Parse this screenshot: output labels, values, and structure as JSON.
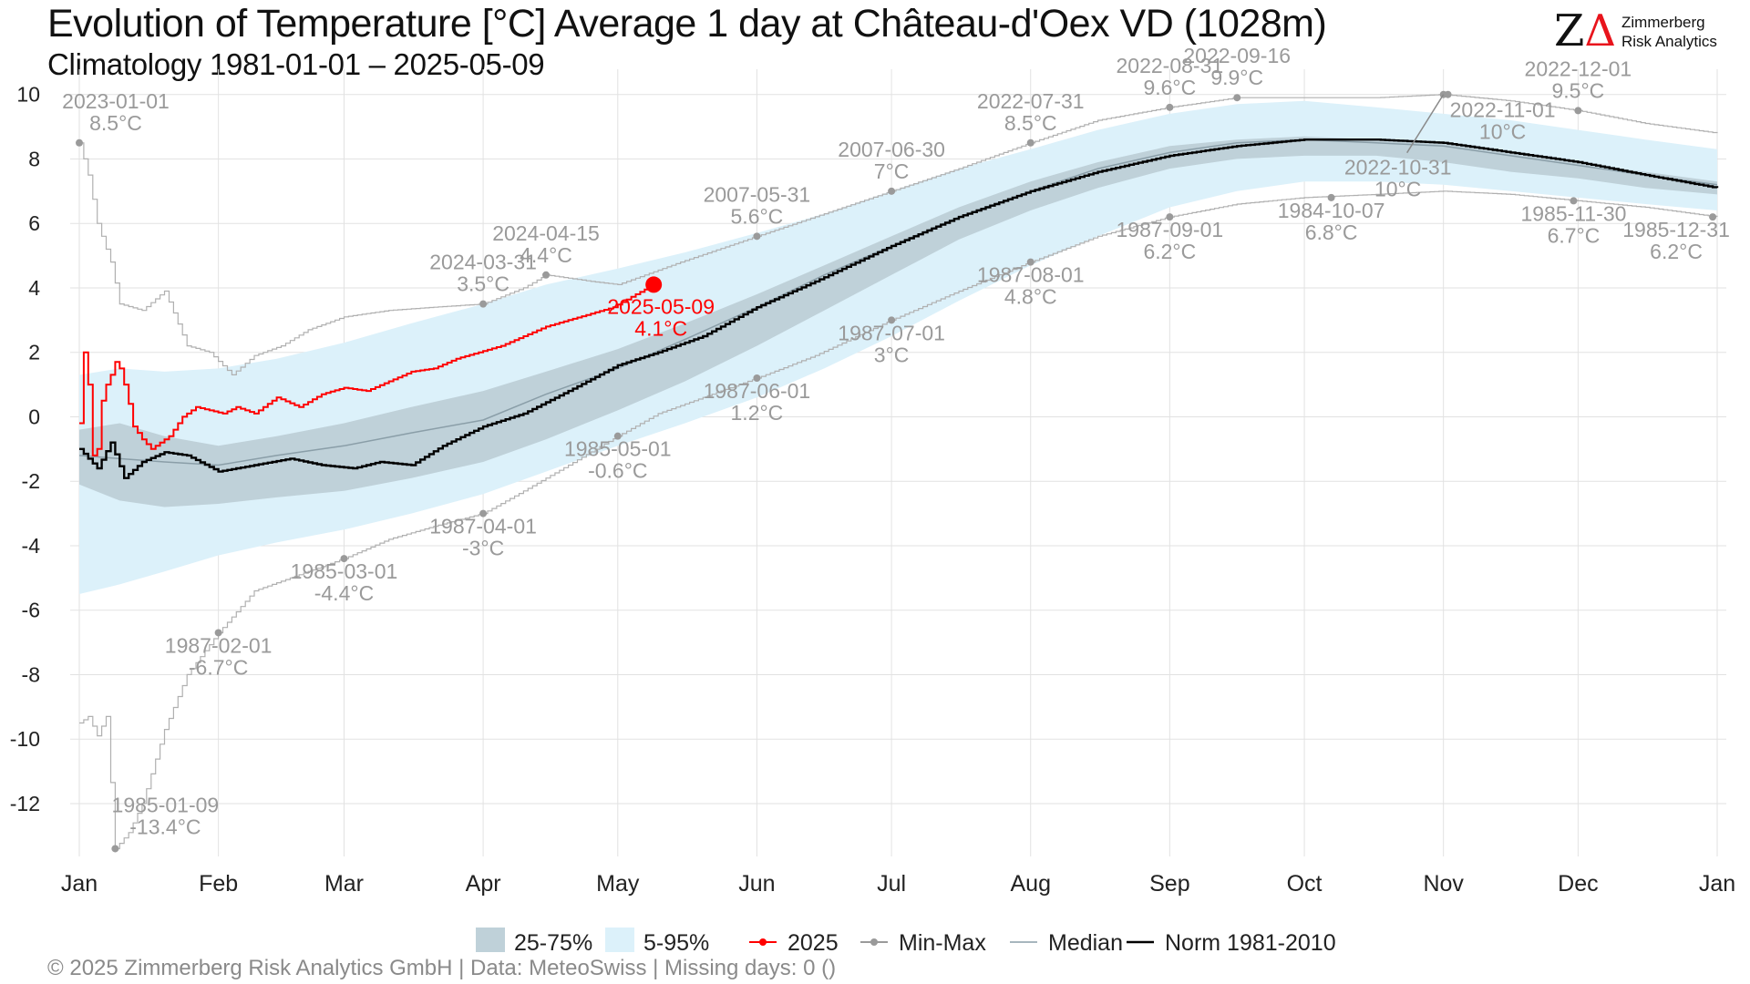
{
  "header": {
    "title": "Evolution of Temperature [°C] Average 1 day at Château-d'Oex  VD (1028m)",
    "subtitle": "Climatology 1981-01-01 – 2025-05-09"
  },
  "logo": {
    "mark_z": "Z",
    "mark_delta": "Δ",
    "line1": "Zimmerberg",
    "line2": "Risk Analytics"
  },
  "legend": {
    "items": [
      {
        "label": "25-75%",
        "kind": "box",
        "color": "#bfd1d9"
      },
      {
        "label": "5-95%",
        "kind": "box",
        "color": "#dcf1fa"
      },
      {
        "label": "2025",
        "kind": "line-dot",
        "color": "#ff0000"
      },
      {
        "label": "Min-Max",
        "kind": "line-dot",
        "color": "#9a9a9a"
      },
      {
        "label": "Median",
        "kind": "line",
        "color": "#8a9ea8"
      },
      {
        "label": "Norm 1981-2010",
        "kind": "line",
        "color": "#000000"
      }
    ]
  },
  "footer": "©  2025 Zimmerberg Risk Analytics GmbH | Data: MeteoSwiss | Missing days: 0 ()",
  "colors": {
    "current": "#ff0000",
    "minmax": "#9a9a9a",
    "median": "#8a9ea8",
    "norm": "#000000",
    "p25_75": "#bfd1d9",
    "p5_95": "#dcf1fa",
    "grid": "#e2e2e2"
  },
  "chart_data": {
    "type": "line",
    "x_unit": "day of year",
    "ylim": [
      -13.5,
      10.5
    ],
    "y_ticks": [
      10,
      8,
      6,
      4,
      2,
      0,
      -2,
      -4,
      -6,
      -8,
      -10,
      -12
    ],
    "x_ticks": [
      {
        "label": "Jan",
        "day": 1
      },
      {
        "label": "Feb",
        "day": 32
      },
      {
        "label": "Mar",
        "day": 60
      },
      {
        "label": "Apr",
        "day": 91
      },
      {
        "label": "May",
        "day": 121
      },
      {
        "label": "Jun",
        "day": 152
      },
      {
        "label": "Jul",
        "day": 182
      },
      {
        "label": "Aug",
        "day": 213
      },
      {
        "label": "Sep",
        "day": 244
      },
      {
        "label": "Oct",
        "day": 274
      },
      {
        "label": "Nov",
        "day": 305
      },
      {
        "label": "Dec",
        "day": 335
      },
      {
        "label": "Jan",
        "day": 366
      }
    ],
    "grid": true,
    "series": [
      {
        "name": "5-95%",
        "kind": "band",
        "x": [
          1,
          10,
          20,
          32,
          45,
          60,
          75,
          91,
          105,
          121,
          136,
          152,
          167,
          182,
          197,
          213,
          228,
          244,
          259,
          274,
          290,
          305,
          320,
          335,
          350,
          366
        ],
        "low": [
          -5.5,
          -5.2,
          -4.8,
          -4.3,
          -3.9,
          -3.5,
          -3.0,
          -2.4,
          -1.7,
          -0.9,
          -0.2,
          0.6,
          1.5,
          2.5,
          3.6,
          4.7,
          5.6,
          6.5,
          7.0,
          7.3,
          7.3,
          7.2,
          7.0,
          6.8,
          6.6,
          6.4
        ],
        "high": [
          1.3,
          1.5,
          1.4,
          1.5,
          1.8,
          2.3,
          2.9,
          3.5,
          4.1,
          4.6,
          5.1,
          5.7,
          6.3,
          7.0,
          7.7,
          8.3,
          8.9,
          9.4,
          9.7,
          9.8,
          9.6,
          9.4,
          9.2,
          8.9,
          8.6,
          8.3
        ]
      },
      {
        "name": "25-75%",
        "kind": "band",
        "x": [
          1,
          10,
          20,
          32,
          45,
          60,
          75,
          91,
          105,
          121,
          136,
          152,
          167,
          182,
          197,
          213,
          228,
          244,
          259,
          274,
          290,
          305,
          320,
          335,
          350,
          366
        ],
        "low": [
          -2.1,
          -2.6,
          -2.8,
          -2.7,
          -2.5,
          -2.3,
          -1.9,
          -1.4,
          -0.7,
          0.2,
          1.1,
          2.2,
          3.3,
          4.4,
          5.5,
          6.4,
          7.1,
          7.7,
          8.0,
          8.1,
          8.1,
          7.9,
          7.6,
          7.4,
          7.1,
          6.9
        ],
        "high": [
          -0.4,
          -0.2,
          -0.6,
          -0.9,
          -0.6,
          -0.2,
          0.3,
          0.8,
          1.4,
          2.1,
          2.9,
          3.8,
          4.7,
          5.6,
          6.5,
          7.3,
          7.9,
          8.4,
          8.6,
          8.7,
          8.6,
          8.5,
          8.2,
          7.9,
          7.6,
          7.3
        ]
      },
      {
        "name": "Median",
        "kind": "line",
        "x": [
          1,
          10,
          20,
          32,
          45,
          60,
          75,
          91,
          105,
          121,
          136,
          152,
          167,
          182,
          197,
          213,
          228,
          244,
          259,
          274,
          290,
          305,
          320,
          335,
          350,
          366
        ],
        "y": [
          -1.2,
          -1.3,
          -1.4,
          -1.5,
          -1.2,
          -0.9,
          -0.5,
          -0.1,
          0.7,
          1.5,
          2.4,
          3.4,
          4.4,
          5.3,
          6.2,
          7.0,
          7.7,
          8.2,
          8.5,
          8.6,
          8.5,
          8.4,
          8.1,
          7.8,
          7.5,
          7.2
        ]
      },
      {
        "name": "Norm 1981-2010",
        "kind": "line",
        "x": [
          1,
          5,
          8,
          11,
          15,
          20,
          25,
          32,
          40,
          48,
          55,
          62,
          68,
          75,
          82,
          91,
          100,
          110,
          121,
          130,
          140,
          152,
          165,
          182,
          197,
          213,
          228,
          244,
          259,
          274,
          290,
          305,
          320,
          335,
          350,
          366
        ],
        "y": [
          -1.0,
          -1.6,
          -0.8,
          -1.9,
          -1.4,
          -1.1,
          -1.2,
          -1.7,
          -1.5,
          -1.3,
          -1.5,
          -1.6,
          -1.4,
          -1.5,
          -0.9,
          -0.3,
          0.1,
          0.8,
          1.6,
          2.0,
          2.5,
          3.4,
          4.2,
          5.3,
          6.2,
          7.0,
          7.6,
          8.1,
          8.4,
          8.6,
          8.6,
          8.5,
          8.2,
          7.9,
          7.5,
          7.1
        ]
      },
      {
        "name": "Min",
        "kind": "line",
        "x": [
          1,
          3,
          5,
          7,
          9,
          12,
          15,
          20,
          25,
          32,
          40,
          50,
          60,
          70,
          80,
          91,
          100,
          110,
          121,
          130,
          140,
          152,
          165,
          182,
          197,
          213,
          228,
          244,
          259,
          274,
          290,
          305,
          320,
          335,
          350,
          366
        ],
        "y": [
          -9.5,
          -9.3,
          -9.9,
          -9.3,
          -13.4,
          -12.9,
          -12.0,
          -9.7,
          -8.0,
          -6.7,
          -5.4,
          -4.9,
          -4.4,
          -3.8,
          -3.4,
          -3.0,
          -2.3,
          -1.5,
          -0.6,
          0.1,
          0.6,
          1.2,
          1.9,
          3.0,
          3.9,
          4.8,
          5.6,
          6.2,
          6.6,
          6.8,
          6.9,
          7.0,
          6.9,
          6.7,
          6.5,
          6.2
        ]
      },
      {
        "name": "Max",
        "kind": "line",
        "x": [
          1,
          3,
          5,
          8,
          10,
          15,
          20,
          25,
          30,
          35,
          40,
          46,
          52,
          60,
          70,
          80,
          91,
          100,
          105,
          115,
          121,
          135,
          152,
          167,
          182,
          197,
          213,
          228,
          244,
          259,
          274,
          290,
          305,
          320,
          335,
          350,
          366
        ],
        "y": [
          8.5,
          7.5,
          6.0,
          4.8,
          3.5,
          3.3,
          3.9,
          2.2,
          2.0,
          1.3,
          1.9,
          2.2,
          2.7,
          3.1,
          3.3,
          3.4,
          3.5,
          4.0,
          4.4,
          4.2,
          4.1,
          4.8,
          5.6,
          6.3,
          7.0,
          7.7,
          8.5,
          9.2,
          9.6,
          9.9,
          9.9,
          9.9,
          10.0,
          9.8,
          9.5,
          9.1,
          8.8
        ]
      },
      {
        "name": "2025",
        "kind": "line",
        "x": [
          1,
          2,
          3,
          4,
          5,
          6,
          7,
          8,
          9,
          10,
          11,
          12,
          13,
          15,
          17,
          19,
          21,
          24,
          27,
          30,
          33,
          36,
          40,
          45,
          50,
          55,
          60,
          65,
          70,
          75,
          80,
          85,
          90,
          95,
          100,
          105,
          110,
          115,
          120,
          125,
          129
        ],
        "y": [
          -0.2,
          2.0,
          1.0,
          -1.2,
          -1.0,
          0.5,
          1.0,
          1.3,
          1.7,
          1.5,
          1.0,
          0.4,
          -0.3,
          -0.7,
          -1.0,
          -0.8,
          -0.6,
          0.0,
          0.3,
          0.2,
          0.1,
          0.3,
          0.1,
          0.6,
          0.3,
          0.7,
          0.9,
          0.8,
          1.1,
          1.4,
          1.5,
          1.8,
          2.0,
          2.2,
          2.5,
          2.8,
          3.0,
          3.2,
          3.4,
          3.8,
          4.1
        ]
      }
    ],
    "current_point": {
      "x": 129,
      "y": 4.1,
      "date": "2025-05-09",
      "value": "4.1°C"
    },
    "annotations": [
      {
        "date": "2023-01-01",
        "value": "8.5°C",
        "x": 1,
        "y": 8.5,
        "kind": "max"
      },
      {
        "date": "2024-03-31",
        "value": "3.5°C",
        "x": 91,
        "y": 3.5,
        "kind": "max"
      },
      {
        "date": "2024-04-15",
        "value": "4.4°C",
        "x": 105,
        "y": 4.4,
        "kind": "max"
      },
      {
        "date": "2007-05-31",
        "value": "5.6°C",
        "x": 152,
        "y": 5.6,
        "kind": "max"
      },
      {
        "date": "2007-06-30",
        "value": "7°C",
        "x": 182,
        "y": 7.0,
        "kind": "max"
      },
      {
        "date": "2022-07-31",
        "value": "8.5°C",
        "x": 213,
        "y": 8.5,
        "kind": "max"
      },
      {
        "date": "2022-08-31",
        "value": "9.6°C",
        "x": 244,
        "y": 9.6,
        "kind": "max"
      },
      {
        "date": "2022-09-16",
        "value": "9.9°C",
        "x": 259,
        "y": 9.9,
        "kind": "max"
      },
      {
        "date": "2022-10-31",
        "value": "10°C",
        "x": 305,
        "y": 10.0,
        "kind": "max"
      },
      {
        "date": "2022-11-01",
        "value": "10°C",
        "x": 306,
        "y": 10.0,
        "kind": "max"
      },
      {
        "date": "2022-12-01",
        "value": "9.5°C",
        "x": 335,
        "y": 9.5,
        "kind": "max"
      },
      {
        "date": "1985-01-09",
        "value": "-13.4°C",
        "x": 9,
        "y": -13.4,
        "kind": "min"
      },
      {
        "date": "1987-02-01",
        "value": "-6.7°C",
        "x": 32,
        "y": -6.7,
        "kind": "min"
      },
      {
        "date": "1985-03-01",
        "value": "-4.4°C",
        "x": 60,
        "y": -4.4,
        "kind": "min"
      },
      {
        "date": "1987-04-01",
        "value": "-3°C",
        "x": 91,
        "y": -3.0,
        "kind": "min"
      },
      {
        "date": "1985-05-01",
        "value": "-0.6°C",
        "x": 121,
        "y": -0.6,
        "kind": "min"
      },
      {
        "date": "1987-06-01",
        "value": "1.2°C",
        "x": 152,
        "y": 1.2,
        "kind": "min"
      },
      {
        "date": "1987-07-01",
        "value": "3°C",
        "x": 182,
        "y": 3.0,
        "kind": "min"
      },
      {
        "date": "1987-08-01",
        "value": "4.8°C",
        "x": 213,
        "y": 4.8,
        "kind": "min"
      },
      {
        "date": "1987-09-01",
        "value": "6.2°C",
        "x": 244,
        "y": 6.2,
        "kind": "min"
      },
      {
        "date": "1984-10-07",
        "value": "6.8°C",
        "x": 280,
        "y": 6.8,
        "kind": "min"
      },
      {
        "date": "1985-11-30",
        "value": "6.7°C",
        "x": 334,
        "y": 6.7,
        "kind": "min"
      },
      {
        "date": "1985-12-31",
        "value": "6.2°C",
        "x": 365,
        "y": 6.2,
        "kind": "min"
      }
    ]
  }
}
